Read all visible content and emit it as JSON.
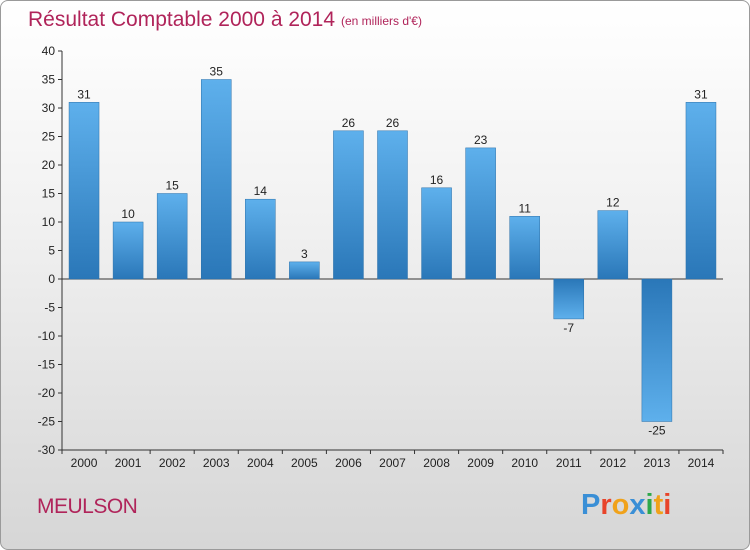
{
  "header": {
    "title": "Résultat Comptable 2000 à 2014",
    "subtitle": "(en milliers d'€)"
  },
  "footer": {
    "city": "MEULSON",
    "logo": {
      "text": "Proxiti",
      "colors": [
        "#3a8fd6",
        "#e8442a",
        "#f0a21a",
        "#3a8fd6",
        "#2ea84a",
        "#f0a21a",
        "#e8442a"
      ]
    }
  },
  "colors": {
    "title": "#b0245a",
    "bar_light": "#5eb0ec",
    "bar_dark": "#2a77b8"
  },
  "chart_data": {
    "type": "bar",
    "categories": [
      "2000",
      "2001",
      "2002",
      "2003",
      "2004",
      "2005",
      "2006",
      "2007",
      "2008",
      "2009",
      "2010",
      "2011",
      "2012",
      "2013",
      "2014"
    ],
    "values": [
      31,
      10,
      15,
      35,
      14,
      3,
      26,
      26,
      16,
      23,
      11,
      -7,
      12,
      -25,
      31
    ],
    "title": "Résultat Comptable 2000 à 2014",
    "xlabel": "",
    "ylabel": "",
    "ylim": [
      -30,
      40
    ],
    "yticks": [
      40,
      35,
      30,
      25,
      20,
      15,
      10,
      5,
      0,
      -5,
      -10,
      -15,
      -20,
      -25,
      -30
    ],
    "grid": false,
    "legend": "none"
  }
}
